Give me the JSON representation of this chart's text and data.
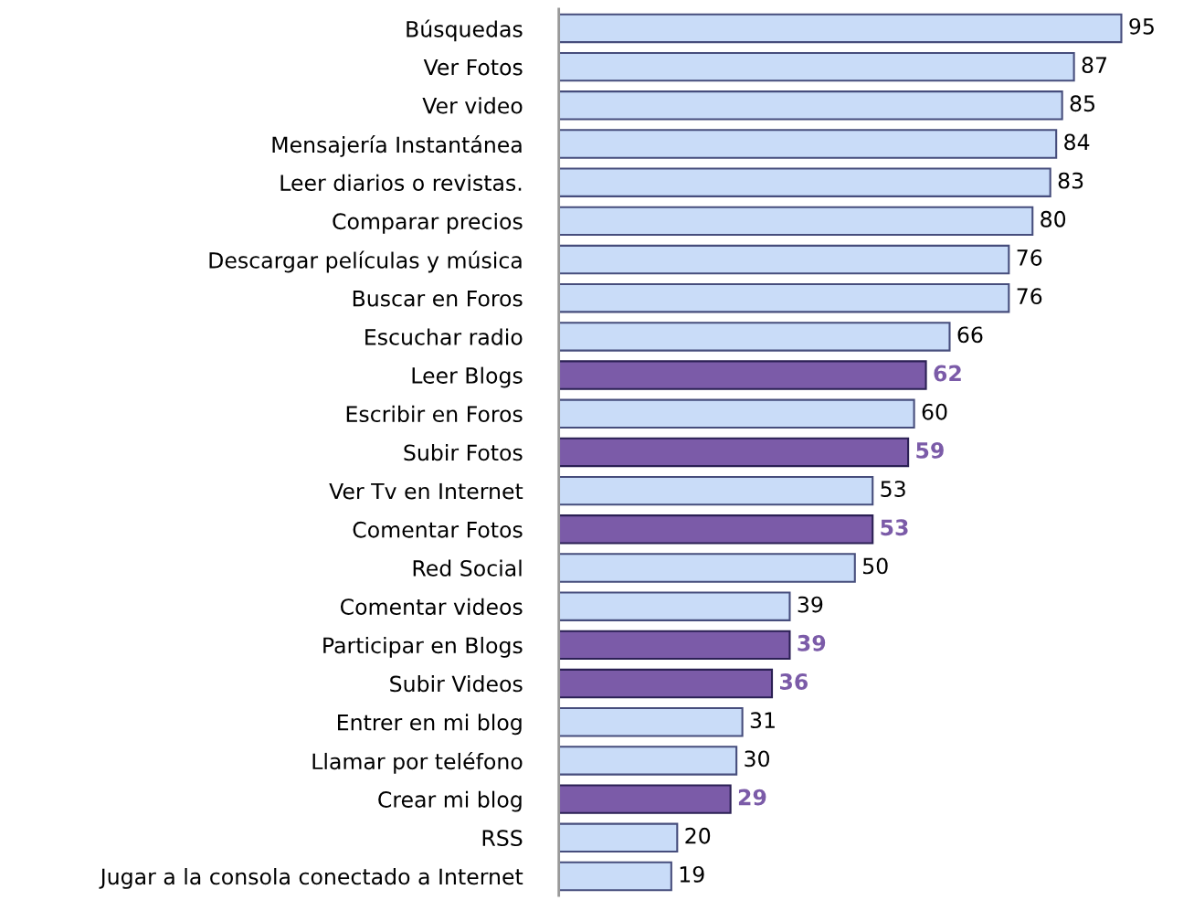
{
  "chart_data": {
    "type": "bar",
    "orientation": "horizontal",
    "data_labels": true,
    "categories": [
      "Búsquedas",
      "Ver Fotos",
      "Ver video",
      "Mensajería Instantánea",
      "Leer diarios o revistas.",
      "Comparar precios",
      "Descargar películas y música",
      "Buscar en Foros",
      "Escuchar radio",
      "Leer Blogs",
      "Escribir en Foros",
      "Subir Fotos",
      "Ver Tv en Internet",
      "Comentar Fotos",
      "Red Social",
      "Comentar videos",
      "Participar en Blogs",
      "Subir Videos",
      "Entrer en mi blog",
      "Llamar por teléfono",
      "Crear mi blog",
      "RSS",
      "Jugar a la consola conectado a Internet"
    ],
    "values": [
      95,
      87,
      85,
      84,
      83,
      80,
      76,
      76,
      66,
      62,
      60,
      59,
      53,
      53,
      50,
      39,
      39,
      36,
      31,
      30,
      29,
      20,
      19
    ],
    "colors": [
      "#c9dcf8",
      "#c9dcf8",
      "#c9dcf8",
      "#c9dcf8",
      "#c9dcf8",
      "#c9dcf8",
      "#c9dcf8",
      "#c9dcf8",
      "#c9dcf8",
      "#7b5ba8",
      "#c9dcf8",
      "#7b5ba8",
      "#c9dcf8",
      "#7b5ba8",
      "#c9dcf8",
      "#c9dcf8",
      "#7b5ba8",
      "#7b5ba8",
      "#c9dcf8",
      "#c9dcf8",
      "#7b5ba8",
      "#c9dcf8",
      "#c9dcf8"
    ],
    "grid": false,
    "legend": false
  }
}
